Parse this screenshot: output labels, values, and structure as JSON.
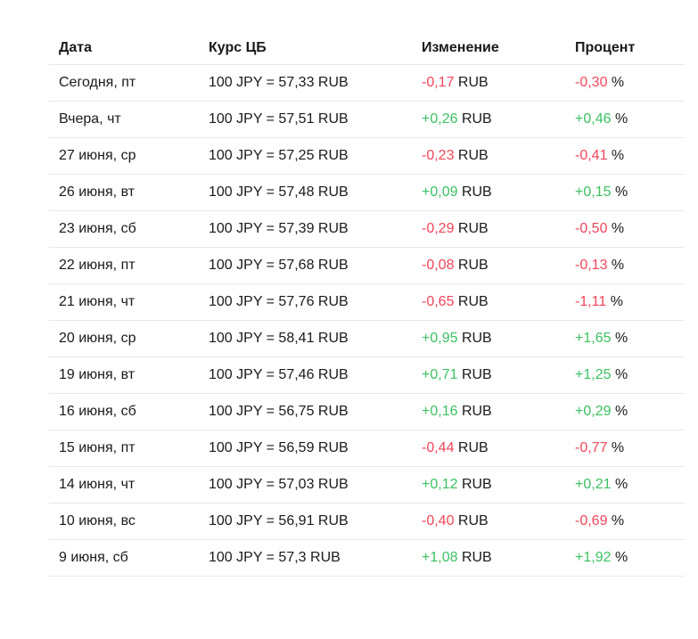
{
  "colors": {
    "positive": "#3bc162",
    "negative": "#f3455a",
    "text": "#1a1a1a",
    "divider": "#e8e8e8"
  },
  "table": {
    "columns": [
      "Дата",
      "Курс ЦБ",
      "Изменение",
      "Процент"
    ],
    "rows": [
      {
        "date": "Сегодня, пт",
        "rate": "100 JPY = 57,33 RUB",
        "change": "-0,17",
        "change_unit": "RUB",
        "percent": "-0,30",
        "percent_unit": "%",
        "trend": "down"
      },
      {
        "date": "Вчера, чт",
        "rate": "100 JPY = 57,51 RUB",
        "change": "+0,26",
        "change_unit": "RUB",
        "percent": "+0,46",
        "percent_unit": "%",
        "trend": "up"
      },
      {
        "date": "27 июня, ср",
        "rate": "100 JPY = 57,25 RUB",
        "change": "-0,23",
        "change_unit": "RUB",
        "percent": "-0,41",
        "percent_unit": "%",
        "trend": "down"
      },
      {
        "date": "26 июня, вт",
        "rate": "100 JPY = 57,48 RUB",
        "change": "+0,09",
        "change_unit": "RUB",
        "percent": "+0,15",
        "percent_unit": "%",
        "trend": "up"
      },
      {
        "date": "23 июня, сб",
        "rate": "100 JPY = 57,39 RUB",
        "change": "-0,29",
        "change_unit": "RUB",
        "percent": "-0,50",
        "percent_unit": "%",
        "trend": "down"
      },
      {
        "date": "22 июня, пт",
        "rate": "100 JPY = 57,68 RUB",
        "change": "-0,08",
        "change_unit": "RUB",
        "percent": "-0,13",
        "percent_unit": "%",
        "trend": "down"
      },
      {
        "date": "21 июня, чт",
        "rate": "100 JPY = 57,76 RUB",
        "change": "-0,65",
        "change_unit": "RUB",
        "percent": "-1,11",
        "percent_unit": "%",
        "trend": "down"
      },
      {
        "date": "20 июня, ср",
        "rate": "100 JPY = 58,41 RUB",
        "change": "+0,95",
        "change_unit": "RUB",
        "percent": "+1,65",
        "percent_unit": "%",
        "trend": "up"
      },
      {
        "date": "19 июня, вт",
        "rate": "100 JPY = 57,46 RUB",
        "change": "+0,71",
        "change_unit": "RUB",
        "percent": "+1,25",
        "percent_unit": "%",
        "trend": "up"
      },
      {
        "date": "16 июня, сб",
        "rate": "100 JPY = 56,75 RUB",
        "change": "+0,16",
        "change_unit": "RUB",
        "percent": "+0,29",
        "percent_unit": "%",
        "trend": "up"
      },
      {
        "date": "15 июня, пт",
        "rate": "100 JPY = 56,59 RUB",
        "change": "-0,44",
        "change_unit": "RUB",
        "percent": "-0,77",
        "percent_unit": "%",
        "trend": "down"
      },
      {
        "date": "14 июня, чт",
        "rate": "100 JPY = 57,03 RUB",
        "change": "+0,12",
        "change_unit": "RUB",
        "percent": "+0,21",
        "percent_unit": "%",
        "trend": "up"
      },
      {
        "date": "10 июня, вс",
        "rate": "100 JPY = 56,91 RUB",
        "change": "-0,40",
        "change_unit": "RUB",
        "percent": "-0,69",
        "percent_unit": "%",
        "trend": "down"
      },
      {
        "date": "9 июня, сб",
        "rate": "100 JPY = 57,3 RUB",
        "change": "+1,08",
        "change_unit": "RUB",
        "percent": "+1,92",
        "percent_unit": "%",
        "trend": "up"
      }
    ]
  }
}
